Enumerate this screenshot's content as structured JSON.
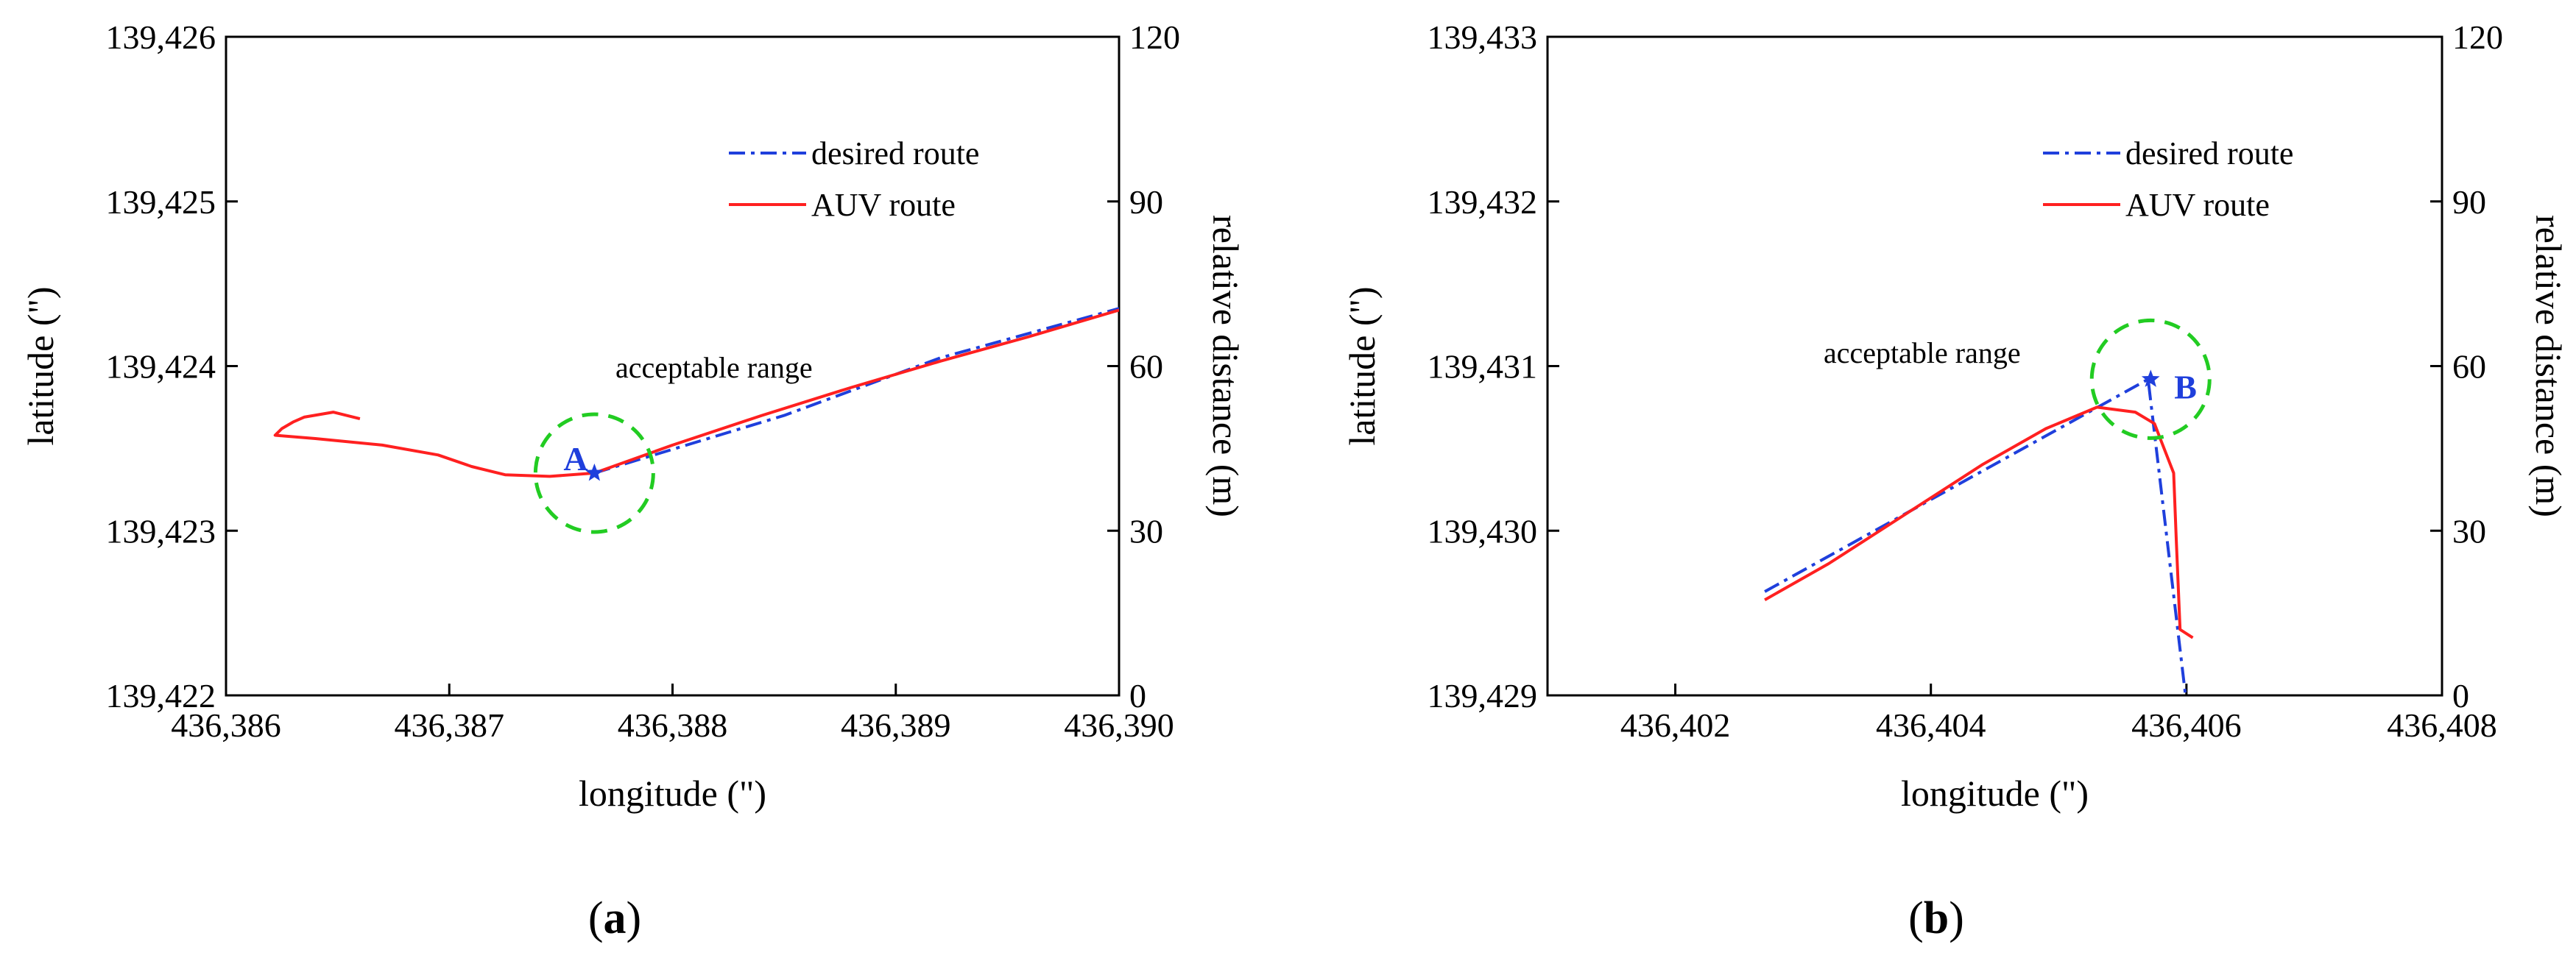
{
  "chart_data": [
    {
      "type": "line",
      "panel_label": "a",
      "xlabel": "longitude (\")",
      "ylabel": "latitude (\")",
      "ylabel_right": "relative distance (m)",
      "xlim": [
        436386,
        436390
      ],
      "ylim": [
        139422,
        139426
      ],
      "ylim_right": [
        0,
        120
      ],
      "xticks": [
        "436,386",
        "436,387",
        "436,388",
        "436,389",
        "436,390"
      ],
      "yticks": [
        "139,422",
        "139,423",
        "139,424",
        "139,425",
        "139,426"
      ],
      "yticks_right": [
        "0",
        "30",
        "60",
        "90",
        "120"
      ],
      "legend": {
        "position": "top-right",
        "entries": [
          "desired route",
          "AUV route"
        ]
      },
      "series": [
        {
          "name": "desired route",
          "color": "#1f3fdc",
          "style": "dash-dot",
          "x": [
            436387.65,
            436388.5,
            436389.2,
            436390.0
          ],
          "y": [
            139423.35,
            139423.7,
            139424.05,
            139424.35
          ]
        },
        {
          "name": "AUV route",
          "color": "#ff2020",
          "style": "solid",
          "x": [
            436386.6,
            436386.48,
            436386.35,
            436386.3,
            436386.25,
            436386.22,
            436386.4,
            436386.7,
            436386.95,
            436387.1,
            436387.25,
            436387.45,
            436387.65,
            436388.0,
            436388.4,
            436388.8,
            436389.2,
            436389.6,
            436390.0
          ],
          "y": [
            139423.68,
            139423.72,
            139423.69,
            139423.66,
            139423.62,
            139423.58,
            139423.56,
            139423.52,
            139423.46,
            139423.39,
            139423.34,
            139423.33,
            139423.35,
            139423.52,
            139423.7,
            139423.87,
            139424.03,
            139424.18,
            139424.34
          ]
        }
      ],
      "markers": [
        {
          "label": "A",
          "x": 436387.65,
          "y": 139423.35,
          "color": "#1f3fdc"
        }
      ],
      "annotations": [
        {
          "text": "acceptable range",
          "x": 436387.65,
          "y": 139423.35,
          "color": "#22cc22"
        }
      ]
    },
    {
      "type": "line",
      "panel_label": "b",
      "xlabel": "longitude (\")",
      "ylabel": "latitude (\")",
      "ylabel_right": "relative distance (m)",
      "xlim": [
        436401,
        436408
      ],
      "ylim": [
        139429,
        139433
      ],
      "ylim_right": [
        0,
        120
      ],
      "xticks": [
        "436,402",
        "436,404",
        "436,406",
        "436,408"
      ],
      "yticks": [
        "139,429",
        "139,430",
        "139,431",
        "139,432",
        "139,433"
      ],
      "yticks_right": [
        "0",
        "30",
        "60",
        "90",
        "120"
      ],
      "legend": {
        "position": "top-right",
        "entries": [
          "desired route",
          "AUV route"
        ]
      },
      "series": [
        {
          "name": "desired route",
          "color": "#1f3fdc",
          "style": "dash-dot",
          "x": [
            436402.7,
            436405.7,
            436406.0
          ],
          "y": [
            139429.63,
            139430.92,
            139428.95
          ]
        },
        {
          "name": "AUV route",
          "color": "#ff2020",
          "style": "solid",
          "x": [
            436402.7,
            436403.2,
            436403.8,
            436404.4,
            436404.9,
            436405.3,
            436405.6,
            436405.75,
            436405.8,
            436405.9,
            436405.92,
            436405.95,
            436406.05
          ],
          "y": [
            139429.58,
            139429.8,
            139430.1,
            139430.4,
            139430.62,
            139430.75,
            139430.72,
            139430.65,
            139430.55,
            139430.35,
            139429.95,
            139429.4,
            139429.35
          ]
        }
      ],
      "markers": [
        {
          "label": "B",
          "x": 436405.72,
          "y": 139430.92,
          "color": "#1f3fdc"
        }
      ],
      "annotations": [
        {
          "text": "acceptable range",
          "x": 436405.72,
          "y": 139430.92,
          "color": "#22cc22"
        }
      ]
    }
  ]
}
